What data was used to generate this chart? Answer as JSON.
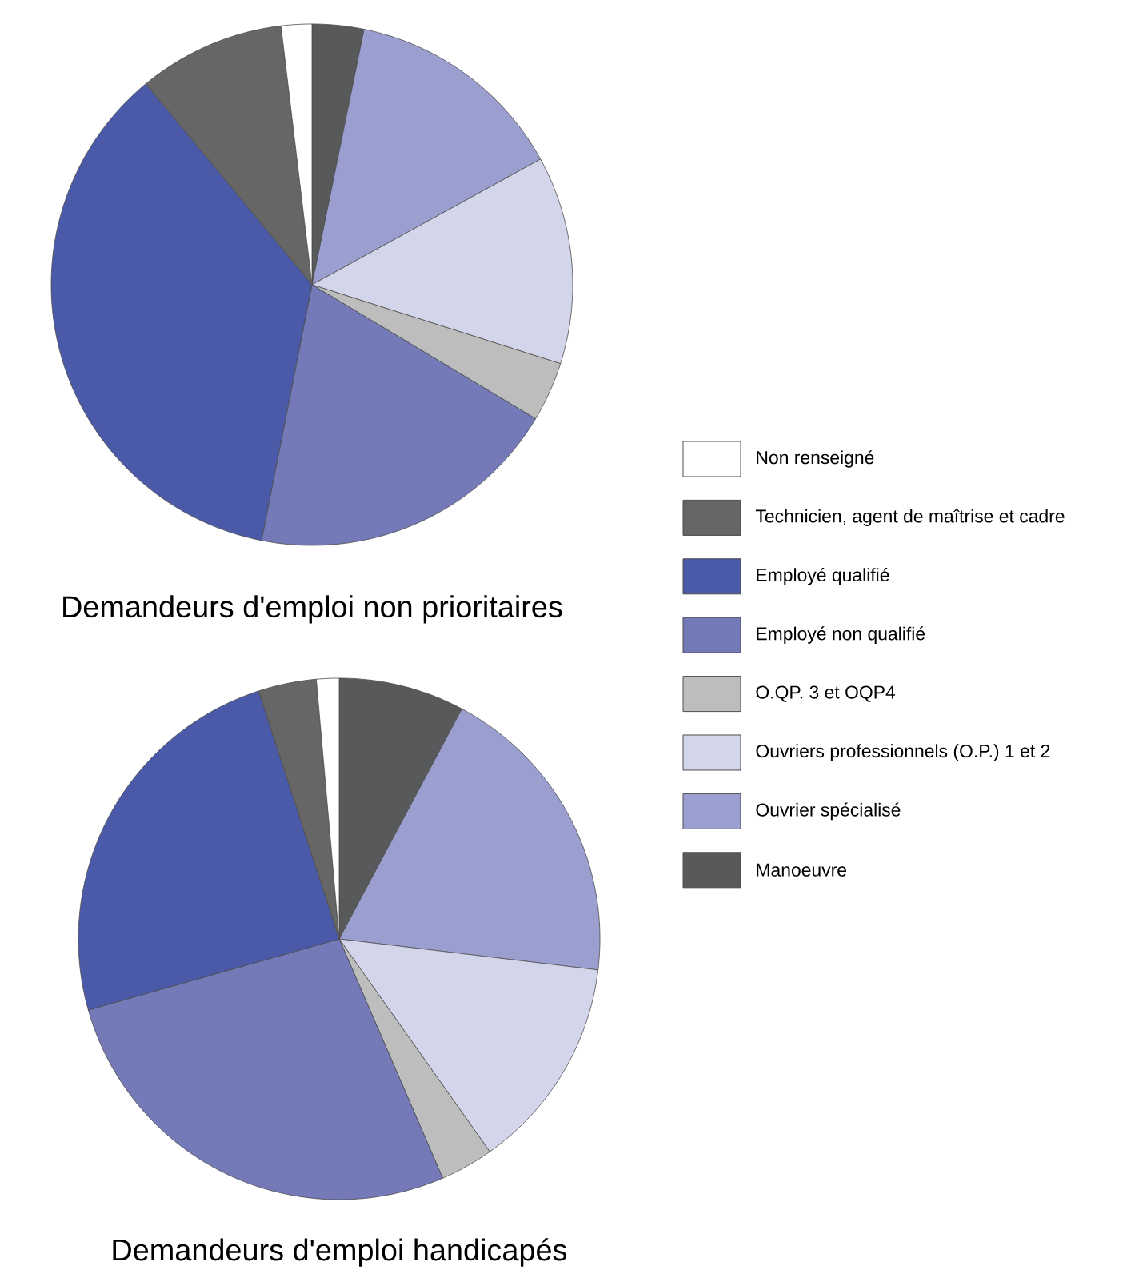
{
  "chart_data": [
    {
      "type": "pie",
      "title": "Demandeurs d'emploi non prioritaires",
      "legend": "right",
      "categories": [
        "Manoeuvre",
        "Ouvrier spécialisé",
        "Ouvriers professionnels (O.P.) 1 et 2",
        "O.QP. 3 et OQP4",
        "Employé non qualifié",
        "Employé qualifié",
        "Technicien, agent de maîtrise et cadre",
        "Non renseigné"
      ],
      "values": [
        3.2,
        13.8,
        12.9,
        3.7,
        19.5,
        35.9,
        9.1,
        1.9
      ],
      "colors": [
        "#58595b",
        "#9b9fcf",
        "#d3d5ea",
        "#bdbdbd",
        "#7479b8",
        "#4b5aa8",
        "#666666",
        "#ffffff"
      ]
    },
    {
      "type": "pie",
      "title": "Demandeurs d'emploi handicapés",
      "categories": [
        null,
        null,
        null,
        null,
        null,
        null,
        null,
        null
      ],
      "values": [
        7.8,
        19.1,
        13.3,
        3.3,
        27.1,
        24.4,
        3.6,
        1.4
      ],
      "colors": [
        "#58595b",
        "#9b9fcf",
        "#d3d5ea",
        "#bdbdbd",
        "#7479b8",
        "#4b5aa8",
        "#666666",
        "#ffffff"
      ]
    }
  ]
}
